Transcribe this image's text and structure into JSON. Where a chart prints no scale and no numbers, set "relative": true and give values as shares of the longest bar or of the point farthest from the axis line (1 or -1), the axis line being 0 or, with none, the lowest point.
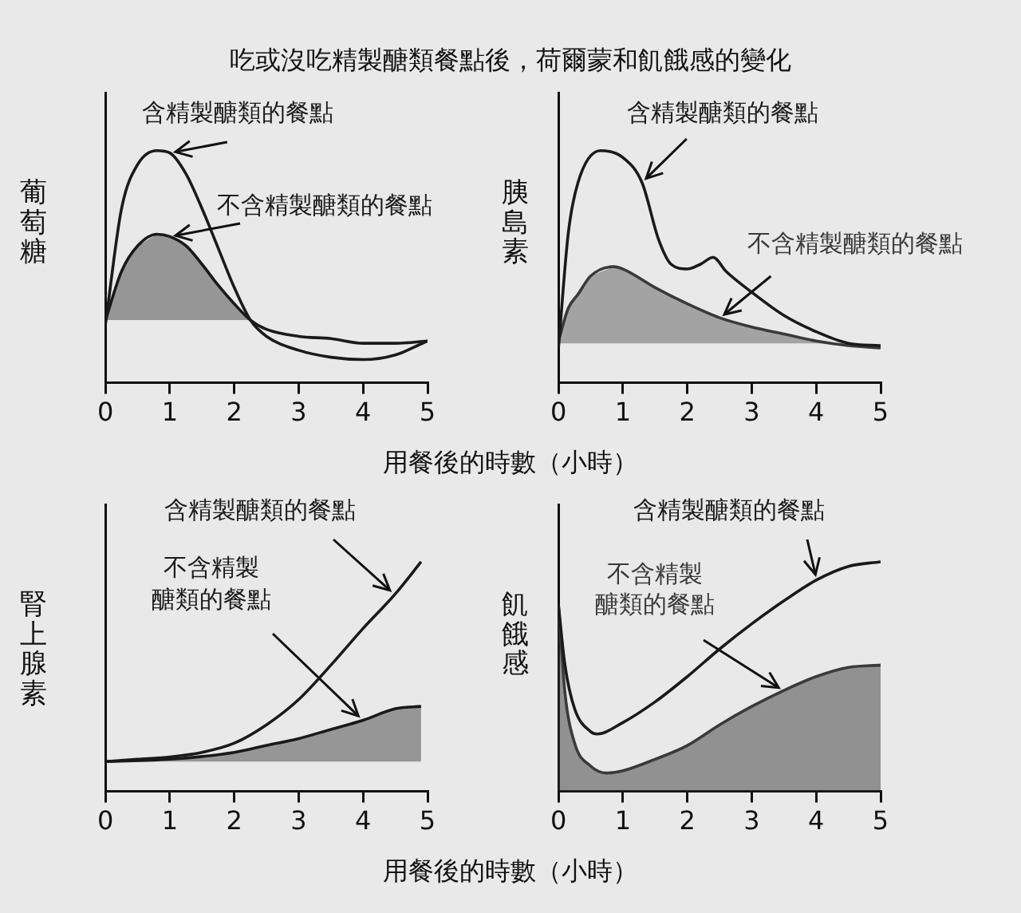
{
  "chart_data": [
    {
      "type": "line",
      "title": "吃或沒吃精製醣類餐點後，荷爾蒙和飢餓感的變化",
      "xlabel": "用餐後的時數（小時）",
      "ylabel": "葡萄糖",
      "relative": true,
      "marker": "none",
      "xlim": [
        0,
        5
      ],
      "xticks": [
        0,
        1,
        2,
        3,
        4,
        5
      ],
      "series": [
        {
          "name": "含精製醣類的餐點",
          "color": "#1a1a1a",
          "x": [
            0,
            0.25,
            0.5,
            0.8,
            1,
            1.25,
            1.5,
            1.75,
            2,
            2.25,
            2.5,
            3,
            3.5,
            4,
            4.5,
            5
          ],
          "values": [
            0.25,
            0.75,
            0.94,
            1,
            0.99,
            0.9,
            0.75,
            0.58,
            0.41,
            0.27,
            0.2,
            0.14,
            0.11,
            0.1,
            0.12,
            0.18
          ]
        },
        {
          "name": "不含精製醣類的餐點",
          "color": "#1a1a1a",
          "x": [
            0,
            0.25,
            0.5,
            0.8,
            1,
            1.25,
            1.5,
            1.75,
            2,
            2.25,
            2.5,
            3,
            3.5,
            4,
            4.5,
            5
          ],
          "values": [
            0.27,
            0.48,
            0.59,
            0.64,
            0.63,
            0.59,
            0.51,
            0.42,
            0.34,
            0.27,
            0.23,
            0.2,
            0.19,
            0.17,
            0.17,
            0.18
          ],
          "lower": [
            0.27,
            0.27,
            0.27,
            0.27,
            0.27,
            0.27,
            0.27,
            0.27,
            0.27,
            0.27,
            null,
            null,
            null,
            null,
            null,
            null
          ],
          "upper": [
            0.27,
            0.48,
            0.59,
            0.64,
            0.63,
            0.59,
            0.51,
            0.42,
            0.34,
            0.27,
            null,
            null,
            null,
            null,
            null,
            null
          ]
        }
      ]
    },
    {
      "type": "line",
      "ylabel": "胰島素",
      "relative": true,
      "marker": "none",
      "xlim": [
        0,
        5
      ],
      "xticks": [
        0,
        1,
        2,
        3,
        4,
        5
      ],
      "series": [
        {
          "name": "含精製醣類的餐點",
          "color": "#1a1a1a",
          "x": [
            0,
            0.15,
            0.3,
            0.65,
            1,
            1.3,
            1.55,
            1.75,
            2,
            2.2,
            2.4,
            2.6,
            3,
            3.5,
            4,
            4.5,
            5
          ],
          "values": [
            0.15,
            0.64,
            0.86,
            1,
            0.97,
            0.86,
            0.62,
            0.51,
            0.49,
            0.51,
            0.54,
            0.48,
            0.39,
            0.29,
            0.22,
            0.17,
            0.16
          ]
        },
        {
          "name": "不含精製醣類的餐點",
          "color": "#3a3a3a",
          "x": [
            0,
            0.15,
            0.3,
            0.5,
            0.85,
            1,
            1.5,
            2,
            2.5,
            3,
            3.5,
            4,
            4.5,
            5
          ],
          "values": [
            0.18,
            0.32,
            0.38,
            0.46,
            0.5,
            0.49,
            0.41,
            0.34,
            0.28,
            0.24,
            0.21,
            0.18,
            0.16,
            0.15
          ],
          "lower": [
            0.17,
            0.17,
            0.17,
            0.17,
            0.17,
            0.17,
            0.17,
            0.17,
            0.17,
            0.17,
            0.17,
            0.17,
            0.16,
            0.15
          ],
          "upper": [
            0.18,
            0.32,
            0.38,
            0.46,
            0.5,
            0.49,
            0.41,
            0.34,
            0.28,
            0.24,
            0.21,
            0.18,
            0.16,
            0.15
          ]
        }
      ]
    },
    {
      "type": "line",
      "xlabel": "用餐後的時數（小時）",
      "ylabel": "腎上腺素",
      "relative": true,
      "marker": "none",
      "xlim": [
        0,
        5
      ],
      "xticks": [
        0,
        1,
        2,
        3,
        4,
        5
      ],
      "series": [
        {
          "name": "含精製醣類的餐點",
          "color": "#1a1a1a",
          "x": [
            0,
            0.5,
            1,
            1.5,
            2,
            2.5,
            3,
            3.5,
            4,
            4.5,
            4.9
          ],
          "values": [
            0.13,
            0.14,
            0.15,
            0.17,
            0.21,
            0.29,
            0.4,
            0.55,
            0.71,
            0.86,
            1
          ]
        },
        {
          "name": "不含精製醣類的餐點",
          "color": "#1a1a1a",
          "x": [
            0,
            1,
            2,
            2.5,
            3,
            3.5,
            4,
            4.5,
            4.9
          ],
          "values": [
            0.13,
            0.14,
            0.17,
            0.2,
            0.23,
            0.27,
            0.31,
            0.36,
            0.37
          ],
          "lower": [
            0.13,
            0.13,
            0.13,
            0.13,
            0.13,
            0.13,
            0.13,
            0.13,
            0.13
          ],
          "upper": [
            0.13,
            0.14,
            0.17,
            0.2,
            0.23,
            0.27,
            0.31,
            0.36,
            0.37
          ]
        }
      ]
    },
    {
      "type": "line",
      "ylabel": "飢餓感",
      "relative": true,
      "marker": "none",
      "xlim": [
        0,
        5
      ],
      "xticks": [
        0,
        1,
        2,
        3,
        4,
        5
      ],
      "series": [
        {
          "name": "含精製醣類的餐點",
          "color": "#1a1a1a",
          "x": [
            0,
            0.1,
            0.25,
            0.5,
            0.6,
            1,
            1.5,
            2,
            2.5,
            3,
            3.5,
            4,
            4.5,
            5
          ],
          "values": [
            0.81,
            0.55,
            0.36,
            0.26,
            0.25,
            0.3,
            0.39,
            0.5,
            0.62,
            0.73,
            0.83,
            0.92,
            0.98,
            1
          ]
        },
        {
          "name": "不含精製醣類的餐點",
          "type": "area",
          "color": "#3a3a3a",
          "x": [
            0,
            0.1,
            0.25,
            0.5,
            0.75,
            1,
            1.5,
            2,
            2.5,
            3,
            3.5,
            4,
            4.5,
            5
          ],
          "values": [
            0.81,
            0.43,
            0.21,
            0.11,
            0.08,
            0.09,
            0.14,
            0.2,
            0.29,
            0.37,
            0.44,
            0.5,
            0.54,
            0.55
          ]
        }
      ]
    }
  ]
}
